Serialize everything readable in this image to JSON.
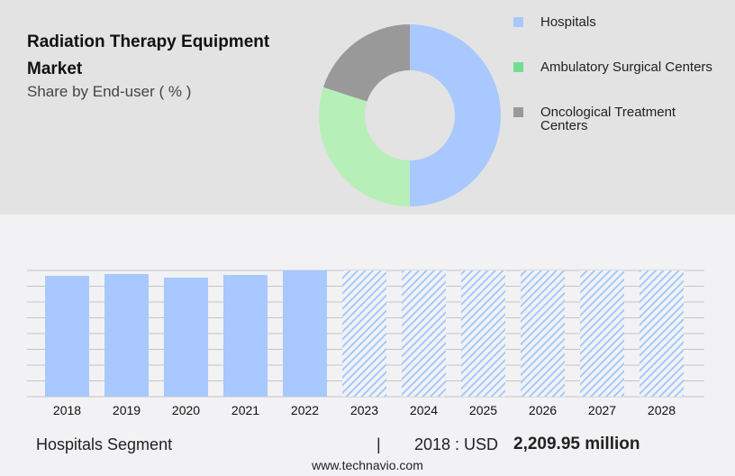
{
  "header": {
    "title": "Radiation Therapy Equipment Market",
    "subtitle": "Share by End-user ( % )"
  },
  "chart_data": [
    {
      "type": "pie",
      "variant": "donut",
      "categories": [
        "Hospitals",
        "Ambulatory Surgical Centers",
        "Oncological Treatment Centers"
      ],
      "values": [
        50,
        30,
        20
      ],
      "colors": [
        "#a8c8ff",
        "#b7efb8",
        "#999999"
      ],
      "legend_colors": [
        "#a8c8ff",
        "#6fe08f",
        "#999999"
      ],
      "legend": "right"
    },
    {
      "type": "bar",
      "categories": [
        "2018",
        "2019",
        "2020",
        "2021",
        "2022",
        "2023",
        "2024",
        "2025",
        "2026",
        "2027",
        "2028"
      ],
      "values": [
        2209.95,
        2243,
        2177,
        2226,
        2309,
        null,
        null,
        null,
        null,
        null,
        null
      ],
      "forecast_hatched": [
        "2023",
        "2024",
        "2025",
        "2026",
        "2027",
        "2028"
      ],
      "grid": true,
      "color": "#a8c8ff"
    }
  ],
  "footer": {
    "segment": "Hospitals Segment",
    "separator": "|",
    "year_label": "2018 : USD",
    "value": "2,209.95 million",
    "source": "www.technavio.com"
  }
}
